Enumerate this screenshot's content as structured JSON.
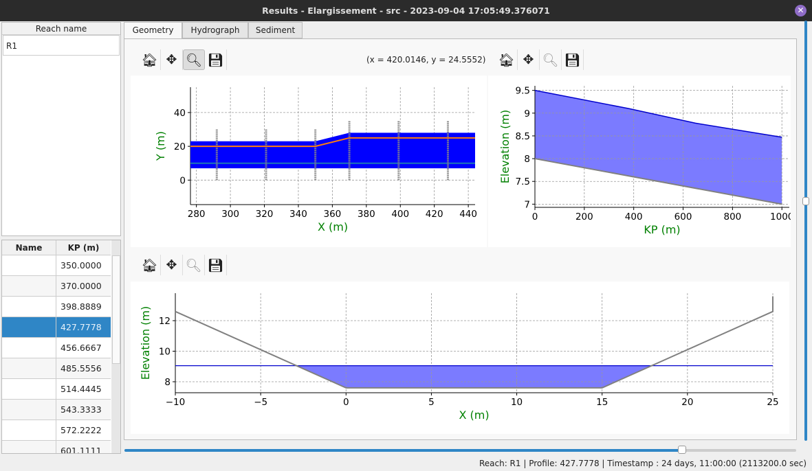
{
  "window": {
    "title": "Results - Elargissement - src - 2023-09-04 17:05:49.376071",
    "close_icon": "close-icon"
  },
  "reach_panel": {
    "header": "Reach name",
    "items": [
      "R1"
    ]
  },
  "profile_table": {
    "headers": [
      "Name",
      "KP (m)"
    ],
    "rows": [
      {
        "name": "",
        "kp": "350.0000"
      },
      {
        "name": "",
        "kp": "370.0000"
      },
      {
        "name": "",
        "kp": "398.8889"
      },
      {
        "name": "",
        "kp": "427.7778",
        "selected": true
      },
      {
        "name": "",
        "kp": "456.6667"
      },
      {
        "name": "",
        "kp": "485.5556"
      },
      {
        "name": "",
        "kp": "514.4445"
      },
      {
        "name": "",
        "kp": "543.3333"
      },
      {
        "name": "",
        "kp": "572.2222"
      },
      {
        "name": "",
        "kp": "601.1111"
      }
    ]
  },
  "tabs": [
    {
      "label": "Geometry",
      "active": true
    },
    {
      "label": "Hydrograph"
    },
    {
      "label": "Sediment"
    }
  ],
  "toolbar": {
    "icons": [
      "home-icon",
      "pan-icon",
      "zoom-icon",
      "save-icon"
    ],
    "coords": "(x = 420.0146,   y = 24.5552)"
  },
  "timeline": {
    "position_fraction": 0.83
  },
  "status": "Reach: R1 | Profile: 427.7778 | Timestamp : 24 days, 11:00:00 (2113200.0 sec)",
  "colors": {
    "water": "#0000ff",
    "water_light": "#7b7bff",
    "bed": "#808080",
    "line": "#ff7f0e",
    "axis_label": "#008000",
    "selection": "#2f86c6"
  },
  "chart_data": [
    {
      "type": "area",
      "xlabel": "X (m)",
      "ylabel": "Y (m)",
      "xlim": [
        276.5,
        444
      ],
      "ylim": [
        -14.5,
        55
      ],
      "xticks": [
        280,
        300,
        320,
        340,
        360,
        380,
        400,
        420,
        440
      ],
      "yticks": [
        0,
        20,
        40
      ],
      "grid": true,
      "water_polygon": [
        [
          276.5,
          23
        ],
        [
          350,
          23
        ],
        [
          370,
          28
        ],
        [
          444,
          28
        ],
        [
          444,
          7
        ],
        [
          276.5,
          7
        ]
      ],
      "center_line": {
        "x": [
          276.5,
          444
        ],
        "y": [
          10,
          10
        ]
      },
      "reach_line": {
        "x": [
          276.5,
          350,
          370,
          444
        ],
        "y": [
          20,
          20,
          25,
          25
        ]
      },
      "sections": [
        {
          "x": 292,
          "y": [
            0,
            30
          ]
        },
        {
          "x": 321,
          "y": [
            0,
            30
          ]
        },
        {
          "x": 350,
          "y": [
            0,
            30
          ]
        },
        {
          "x": 370,
          "y": [
            0,
            35
          ]
        },
        {
          "x": 399,
          "y": [
            0,
            35
          ]
        },
        {
          "x": 428,
          "y": [
            0,
            35
          ]
        }
      ]
    },
    {
      "type": "area",
      "xlabel": "KP (m)",
      "ylabel": "Elevation (m)",
      "xlim": [
        0,
        1030
      ],
      "ylim": [
        6.93,
        9.6
      ],
      "xticks": [
        0,
        200,
        400,
        600,
        800,
        1000
      ],
      "yticks": [
        7.0,
        7.5,
        8.0,
        8.5,
        9.0,
        9.5
      ],
      "grid": true,
      "water": {
        "x": [
          0,
          380,
          650,
          1000
        ],
        "y": [
          9.5,
          9.1,
          8.78,
          8.47
        ]
      },
      "bed": {
        "x": [
          0,
          1000
        ],
        "y": [
          8.0,
          7.0
        ]
      }
    },
    {
      "type": "area",
      "xlabel": "X (m)",
      "ylabel": "Elevation (m)",
      "xlim": [
        -10,
        25
      ],
      "ylim": [
        7.28,
        13.8
      ],
      "xticks": [
        -10,
        -5,
        0,
        5,
        10,
        15,
        20,
        25
      ],
      "xtick_labels": [
        "−10",
        "−5",
        "0",
        "5",
        "10",
        "15",
        "20",
        "25"
      ],
      "yticks": [
        8,
        10,
        12
      ],
      "grid": true,
      "bed": {
        "x": [
          -10,
          0,
          15,
          25,
          25
        ],
        "y": [
          12.6,
          7.6,
          7.6,
          12.6,
          13.6
        ]
      },
      "water_level": 9.05
    }
  ]
}
